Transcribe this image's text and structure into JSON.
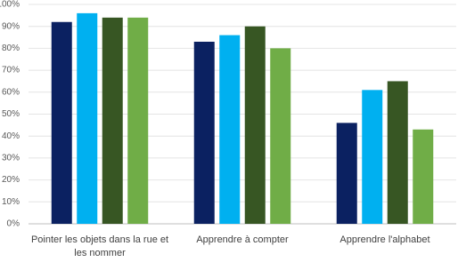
{
  "chart_data": {
    "type": "bar",
    "categories": [
      "Pointer les objets dans la rue et les nommer",
      "Apprendre à compter",
      "Apprendre l'alphabet"
    ],
    "series": [
      {
        "color": "#0b2161",
        "values": [
          92,
          83,
          46
        ]
      },
      {
        "color": "#00b0f0",
        "values": [
          96,
          86,
          61
        ]
      },
      {
        "color": "#375623",
        "values": [
          94,
          90,
          65
        ]
      },
      {
        "color": "#70ad47",
        "values": [
          94,
          80,
          43
        ]
      }
    ],
    "ylim": [
      0,
      100
    ],
    "yticks": [
      {
        "value": 0,
        "label": "0%"
      },
      {
        "value": 10,
        "label": "10%"
      },
      {
        "value": 20,
        "label": "20%"
      },
      {
        "value": 30,
        "label": "30%"
      },
      {
        "value": 40,
        "label": "40%"
      },
      {
        "value": 50,
        "label": "50%"
      },
      {
        "value": 60,
        "label": "60%"
      },
      {
        "value": 70,
        "label": "70%"
      },
      {
        "value": 80,
        "label": "80%"
      },
      {
        "value": 90,
        "label": "90%"
      },
      {
        "value": 100,
        "label": "100%"
      }
    ],
    "grid": true
  }
}
